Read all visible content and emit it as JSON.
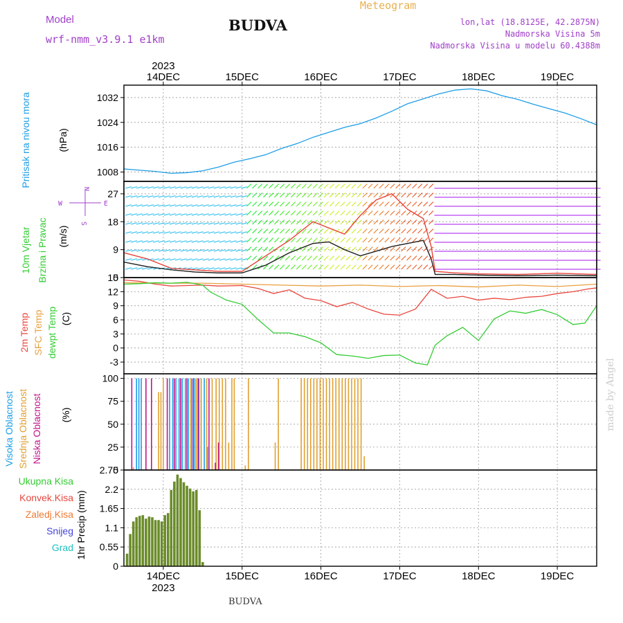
{
  "header": {
    "title": "BUDVA",
    "model_label": "Model",
    "model_name": "wrf-nmm_v3.9.1 e1km",
    "meteogram_label": "Meteogram",
    "lonlat": "lon,lat (18.8125E, 42.2875N)",
    "elevation": "Nadmorska Visina 5m",
    "model_elevation": "Nadmorska Visina u modelu 60.4388m",
    "watermark": "made by Angel",
    "footer": "BUDVA"
  },
  "colors": {
    "pressure": "#1e9ee6",
    "temp2m": "#e8463c",
    "sfc_temp": "#e8a040",
    "dewpt": "#33cc33",
    "high_cloud": "#1e9ee6",
    "mid_cloud": "#e0a030",
    "low_cloud": "#c0148c",
    "precip_bar": "#6b8c2a",
    "total_rain": "#33cc33",
    "conv_rain": "#e8463c",
    "frozen_rain": "#f07a30",
    "snow": "#4444dd",
    "hail": "#20c0c0",
    "purple_text": "#a040c8",
    "gold_text": "#e8b050"
  },
  "chart_data": [
    {
      "type": "line",
      "panel": "pressure",
      "ylabel_lines": [
        "Pritisak na nivou mora",
        "(hPa)"
      ],
      "ylim": [
        1005,
        1036
      ],
      "yticks": [
        1008,
        1016,
        1024,
        1032
      ],
      "x_dates": [
        "14DEC",
        "15DEC",
        "16DEC",
        "17DEC",
        "18DEC",
        "19DEC"
      ],
      "year": "2023",
      "xlim_days": [
        13.5,
        19.5
      ],
      "grid": true,
      "series": [
        {
          "color": "pressure",
          "x": [
            13.5,
            13.7,
            13.9,
            14.1,
            14.3,
            14.5,
            14.7,
            14.9,
            15.1,
            15.3,
            15.5,
            15.7,
            15.9,
            16.1,
            16.3,
            16.5,
            16.7,
            16.9,
            17.1,
            17.3,
            17.5,
            17.7,
            17.9,
            18.1,
            18.3,
            18.5,
            18.7,
            18.9,
            19.1,
            19.3,
            19.5
          ],
          "values": [
            1009.0,
            1008.6,
            1008.2,
            1007.6,
            1007.8,
            1008.4,
            1009.6,
            1011.2,
            1012.3,
            1013.6,
            1015.6,
            1017.2,
            1019.2,
            1020.8,
            1022.4,
            1023.6,
            1025.4,
            1027.6,
            1030.0,
            1031.6,
            1033.2,
            1034.4,
            1034.8,
            1034.2,
            1032.6,
            1031.4,
            1029.8,
            1028.4,
            1027.0,
            1025.2,
            1023.2
          ]
        }
      ]
    },
    {
      "type": "line",
      "panel": "wind",
      "ylabel_lines": [
        "10m Vjetar",
        "Brzina i Pravac",
        "(m/s)"
      ],
      "compass": [
        "N",
        "E",
        "S",
        "W"
      ],
      "ylim": [
        0,
        31
      ],
      "yticks": [
        0,
        9,
        18,
        27
      ],
      "grid": true,
      "series": [
        {
          "name": "speed",
          "color": "#222222",
          "x": [
            13.5,
            13.8,
            14.1,
            14.4,
            14.7,
            15.0,
            15.3,
            15.6,
            15.9,
            16.1,
            16.3,
            16.5,
            16.7,
            16.9,
            17.1,
            17.3,
            17.4,
            17.45,
            17.7,
            18.0,
            18.5,
            19.0,
            19.5
          ],
          "values": [
            5.0,
            3.5,
            2.5,
            1.8,
            1.5,
            1.5,
            4.0,
            8.0,
            11.0,
            11.5,
            9.0,
            7.0,
            8.5,
            10.0,
            11.0,
            12.0,
            6.0,
            1.0,
            1.0,
            0.8,
            0.6,
            0.8,
            0.6
          ]
        },
        {
          "name": "gust",
          "color": "#e8463c",
          "x": [
            13.5,
            13.8,
            14.1,
            14.4,
            14.7,
            15.0,
            15.3,
            15.6,
            15.9,
            16.1,
            16.3,
            16.5,
            16.7,
            16.9,
            17.1,
            17.3,
            17.4,
            17.45,
            17.7,
            18.0,
            18.5,
            19.0,
            19.5
          ],
          "values": [
            8.0,
            6.0,
            3.0,
            2.5,
            2.0,
            2.0,
            7.0,
            12.0,
            18.0,
            16.0,
            14.0,
            20.0,
            25.0,
            27.0,
            22.0,
            19.0,
            10.0,
            2.0,
            1.5,
            1.2,
            1.0,
            1.4,
            1.0
          ]
        }
      ]
    },
    {
      "type": "line",
      "panel": "temperature",
      "ylabel_lines": [
        "2m Temp",
        "SFC Temp",
        "dewpt Temp",
        "(C)"
      ],
      "ylim": [
        -5.5,
        15
      ],
      "yticks": [
        -3,
        0,
        3,
        6,
        9,
        12,
        15
      ],
      "grid": true,
      "series": [
        {
          "name": "2m Temp",
          "color": "temp2m",
          "x": [
            13.5,
            13.7,
            13.9,
            14.1,
            14.3,
            14.5,
            14.7,
            15.0,
            15.2,
            15.4,
            15.6,
            15.8,
            16.0,
            16.2,
            16.4,
            16.6,
            16.8,
            17.0,
            17.2,
            17.4,
            17.6,
            17.8,
            18.0,
            18.2,
            18.4,
            18.6,
            18.8,
            19.0,
            19.2,
            19.4,
            19.5
          ],
          "values": [
            14.5,
            14.2,
            13.6,
            13.2,
            13.3,
            13.4,
            13.2,
            13.3,
            12.7,
            11.6,
            12.4,
            10.6,
            10.1,
            8.8,
            9.7,
            8.3,
            7.2,
            7.0,
            8.3,
            12.5,
            10.6,
            11.0,
            10.2,
            10.6,
            10.3,
            10.8,
            11.0,
            11.6,
            12.0,
            12.6,
            12.8
          ]
        },
        {
          "name": "SFC Temp",
          "color": "sfc_temp",
          "x": [
            13.5,
            14.0,
            14.5,
            15.0,
            15.5,
            16.0,
            16.5,
            17.0,
            17.5,
            18.0,
            18.5,
            19.0,
            19.5
          ],
          "values": [
            13.9,
            13.8,
            13.8,
            13.6,
            13.4,
            13.2,
            13.4,
            13.1,
            13.3,
            13.0,
            13.4,
            13.1,
            13.6
          ]
        },
        {
          "name": "dewpt Temp",
          "color": "dewpt",
          "x": [
            13.5,
            13.7,
            13.9,
            14.1,
            14.3,
            14.5,
            14.6,
            14.8,
            15.0,
            15.2,
            15.4,
            15.6,
            15.8,
            16.0,
            16.2,
            16.4,
            16.6,
            16.8,
            17.0,
            17.2,
            17.35,
            17.45,
            17.6,
            17.8,
            18.0,
            18.2,
            18.4,
            18.6,
            18.8,
            19.0,
            19.2,
            19.35,
            19.5
          ],
          "values": [
            13.6,
            13.7,
            13.9,
            13.8,
            14.0,
            13.4,
            11.9,
            10.2,
            9.3,
            6.1,
            3.2,
            3.2,
            2.4,
            1.1,
            -1.4,
            -1.7,
            -2.2,
            -1.6,
            -1.5,
            -3.2,
            -3.6,
            0.6,
            2.6,
            4.4,
            1.6,
            6.2,
            7.9,
            7.4,
            8.2,
            7.1,
            5.0,
            5.3,
            9.0
          ]
        }
      ]
    },
    {
      "type": "bar",
      "panel": "cloud",
      "ylabel_lines": [
        "Visoka Oblacnost",
        "Srednja Oblacnost",
        "Niska Oblacnost",
        "(%)"
      ],
      "ylim": [
        0,
        105
      ],
      "yticks": [
        0,
        25,
        50,
        75,
        100
      ],
      "grid": true,
      "series": [
        {
          "name": "Visoka Oblacnost",
          "color": "high_cloud",
          "x": [
            13.66,
            13.69,
            13.72,
            14.08,
            14.12,
            14.16,
            14.2,
            14.24,
            14.28,
            14.32,
            14.36,
            14.4,
            14.44,
            14.48,
            14.52,
            14.56
          ],
          "values": [
            100,
            100,
            100,
            100,
            100,
            100,
            100,
            100,
            100,
            100,
            100,
            100,
            100,
            100,
            100,
            25
          ]
        },
        {
          "name": "Srednja Oblacnost",
          "color": "mid_cloud",
          "x": [
            13.62,
            13.94,
            13.97,
            14.0,
            14.35,
            14.42,
            14.48,
            14.55,
            14.62,
            14.67,
            14.71,
            14.75,
            14.79,
            14.83,
            14.87,
            14.9,
            15.04,
            15.08,
            15.42,
            15.46,
            15.75,
            15.79,
            15.83,
            15.87,
            15.91,
            15.95,
            15.99,
            16.03,
            16.07,
            16.11,
            16.15,
            16.19,
            16.23,
            16.27,
            16.31,
            16.35,
            16.39,
            16.43,
            16.47,
            16.51,
            16.55
          ],
          "values": [
            3,
            85,
            85,
            100,
            100,
            100,
            100,
            100,
            100,
            100,
            100,
            100,
            100,
            30,
            100,
            100,
            5,
            100,
            30,
            100,
            100,
            100,
            100,
            100,
            100,
            100,
            100,
            100,
            100,
            100,
            100,
            100,
            100,
            100,
            100,
            100,
            100,
            100,
            100,
            100,
            15
          ]
        },
        {
          "name": "Niska Oblacnost",
          "color": "low_cloud",
          "x": [
            13.6,
            13.78,
            13.85,
            14.05,
            14.14,
            14.22,
            14.3,
            14.38,
            14.45,
            14.58,
            14.66,
            14.7
          ],
          "values": [
            100,
            100,
            100,
            100,
            100,
            100,
            100,
            100,
            100,
            100,
            8,
            30
          ]
        }
      ]
    },
    {
      "type": "bar",
      "panel": "precip",
      "ylabel_lines": [
        "1hr Precip (mm)"
      ],
      "legend": [
        "Ukupna Kisa",
        "Konvek.Kisa",
        "Zaledj.Kisa",
        "Snijeg",
        "Grad"
      ],
      "ylim": [
        0,
        2.75
      ],
      "yticks": [
        0,
        0.55,
        1.1,
        1.65,
        2.2,
        2.75
      ],
      "grid": true,
      "series": [
        {
          "name": "Ukupna Kisa",
          "color": "precip_bar",
          "x": [
            13.54,
            13.58,
            13.62,
            13.66,
            13.7,
            13.74,
            13.78,
            13.82,
            13.86,
            13.9,
            13.94,
            13.98,
            14.02,
            14.06,
            14.1,
            14.14,
            14.18,
            14.22,
            14.26,
            14.3,
            14.34,
            14.38,
            14.42,
            14.46,
            14.5
          ],
          "values": [
            0.36,
            0.92,
            1.28,
            1.4,
            1.44,
            1.46,
            1.36,
            1.42,
            1.4,
            1.32,
            1.32,
            1.28,
            1.46,
            1.52,
            2.18,
            2.42,
            2.62,
            2.52,
            2.4,
            2.3,
            2.22,
            2.14,
            2.18,
            1.6,
            0.12
          ]
        }
      ]
    }
  ]
}
